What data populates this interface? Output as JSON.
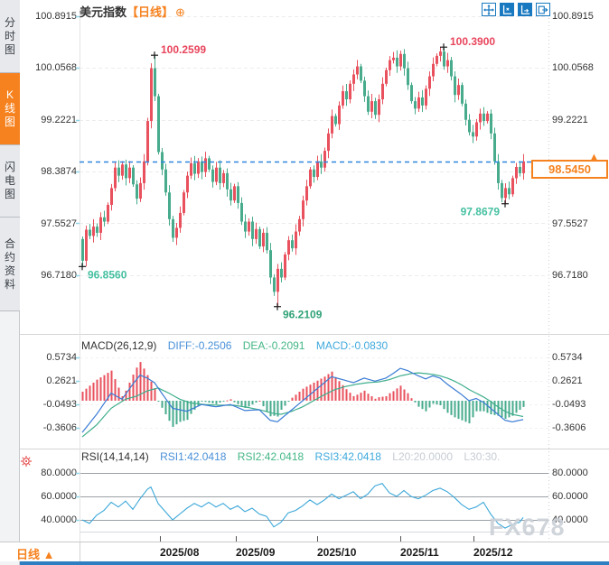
{
  "header": {
    "title": "美元指数",
    "period_tag": "【日线】",
    "add_icon": "⊕"
  },
  "toolbar": {
    "icons": [
      "move",
      "y-axis-scale",
      "x-axis-scale",
      "popout"
    ]
  },
  "sidebar": {
    "items": [
      {
        "label": "分时图",
        "active": false
      },
      {
        "label": "K线图",
        "active": true
      },
      {
        "label": "闪电图",
        "active": false
      },
      {
        "label": "合约资料",
        "active": false
      }
    ]
  },
  "price_axis": {
    "labels": [
      "100.8915",
      "100.0568",
      "99.2221",
      "98.3874",
      "97.5527",
      "96.7180"
    ]
  },
  "price_box": {
    "value": "98.5450",
    "arrow": "▲"
  },
  "macd": {
    "title": "MACD(26,12,9)",
    "diff_label": "DIFF:-0.2506",
    "dea_label": "DEA:-0.2091",
    "macd_label": "MACD:-0.0830",
    "axis": [
      "0.5734",
      "0.2621",
      "-0.0493",
      "-0.3606"
    ]
  },
  "rsi": {
    "title": "RSI(14,14,14)",
    "rsi1_label": "RSI1:42.0418",
    "rsi2_label": "RSI2:42.0418",
    "rsi3_label": "RSI3:42.0418",
    "l20_label": "L20:20.0000",
    "l30_label": "L30:30.",
    "axis": [
      "80.0000",
      "60.0000",
      "40.0000"
    ]
  },
  "bottom": {
    "period_label": "日线",
    "arrow": "▲",
    "x_labels": [
      "2025/08",
      "2025/09",
      "2025/10",
      "2025/11",
      "2025/12"
    ]
  },
  "watermark": "FX678",
  "colors": {
    "up": "#e8515d",
    "down": "#47ab8c",
    "diff": "#3a7bd5",
    "dea": "#3fae8c",
    "rsi_line": "#3ba7d9",
    "accent": "#f6821f",
    "tool_blue": "#1879c0",
    "last_price_line": "#2e86de",
    "ann_red": "#e8455c",
    "ann_teal": "#45c0a1",
    "ann_green": "#2fa277",
    "grid": "#ececec",
    "rsi_grid": "#9aa0a6",
    "cyan_tick": "#8fd6e8"
  },
  "chart_data": {
    "type": "candlestick",
    "title": "美元指数 日线",
    "x_range": [
      "2025/07",
      "2025/12"
    ],
    "price_ylim": [
      96.718,
      100.8915
    ],
    "open_first": 97.3,
    "closes": [
      96.95,
      97.45,
      97.35,
      97.5,
      97.4,
      97.65,
      97.58,
      97.85,
      98.12,
      98.45,
      98.32,
      98.5,
      98.28,
      98.45,
      98.18,
      97.95,
      98.2,
      98.55,
      99.2,
      100.05,
      99.6,
      98.7,
      98.42,
      98.05,
      97.62,
      97.32,
      97.48,
      97.72,
      98.05,
      98.32,
      98.52,
      98.35,
      98.55,
      98.38,
      98.6,
      98.42,
      98.22,
      98.45,
      98.2,
      98.36,
      98.1,
      97.92,
      98.15,
      97.88,
      97.58,
      97.42,
      97.58,
      97.3,
      97.46,
      97.18,
      97.4,
      97.12,
      96.68,
      96.45,
      96.82,
      96.68,
      97.05,
      97.28,
      97.15,
      97.42,
      97.62,
      97.92,
      98.15,
      98.42,
      98.3,
      98.55,
      98.45,
      98.72,
      99.0,
      99.28,
      99.15,
      99.45,
      99.68,
      99.55,
      99.8,
      99.95,
      100.08,
      99.85,
      99.6,
      99.35,
      99.52,
      99.3,
      99.55,
      99.8,
      100.02,
      100.18,
      100.22,
      100.08,
      100.28,
      100.05,
      99.78,
      99.52,
      99.4,
      99.58,
      99.45,
      99.72,
      99.92,
      100.12,
      100.25,
      100.32,
      100.08,
      100.18,
      99.92,
      99.62,
      99.78,
      99.48,
      99.22,
      99.02,
      98.95,
      99.18,
      99.32,
      99.2,
      99.32,
      99.0,
      98.55,
      98.2,
      97.96,
      98.12,
      98.02,
      98.28,
      98.46,
      98.36,
      98.55
    ],
    "markers": [
      {
        "i": 0,
        "price": 96.856,
        "label": "96.8560",
        "kind": "low",
        "side": "br",
        "color": "#45c0a1"
      },
      {
        "i": 20,
        "price": 100.2599,
        "label": "100.2599",
        "kind": "high",
        "side": "ar",
        "color": "#e8455c"
      },
      {
        "i": 54,
        "price": 96.2109,
        "label": "96.2109",
        "kind": "low",
        "side": "br",
        "color": "#2fa277"
      },
      {
        "i": 100,
        "price": 100.39,
        "label": "100.3900",
        "kind": "high",
        "side": "ar",
        "color": "#e8455c"
      },
      {
        "i": 117,
        "price": 97.8679,
        "label": "97.8679",
        "kind": "low",
        "side": "bl",
        "color": "#45c0a1"
      }
    ],
    "last_price": 98.545,
    "macd": {
      "diff_last": -0.2506,
      "dea_last": -0.2091,
      "hist_last": -0.083,
      "axis_values": [
        0.5734,
        0.2621,
        -0.0493,
        -0.3606
      ],
      "diff_anchors": [
        [
          0,
          -0.42
        ],
        [
          4,
          -0.18
        ],
        [
          8,
          0.1
        ],
        [
          11,
          0.02
        ],
        [
          14,
          0.22
        ],
        [
          16,
          0.34
        ],
        [
          18,
          0.3
        ],
        [
          20,
          0.24
        ],
        [
          22,
          0.1
        ],
        [
          25,
          -0.1
        ],
        [
          29,
          -0.14
        ],
        [
          33,
          -0.05
        ],
        [
          37,
          -0.08
        ],
        [
          41,
          -0.05
        ],
        [
          45,
          -0.13
        ],
        [
          49,
          -0.12
        ],
        [
          52,
          -0.26
        ],
        [
          54,
          -0.28
        ],
        [
          56,
          -0.2
        ],
        [
          58,
          -0.12
        ],
        [
          60,
          -0.04
        ],
        [
          63,
          0.08
        ],
        [
          66,
          0.2
        ],
        [
          69,
          0.32
        ],
        [
          72,
          0.28
        ],
        [
          75,
          0.24
        ],
        [
          78,
          0.3
        ],
        [
          81,
          0.26
        ],
        [
          84,
          0.3
        ],
        [
          86,
          0.36
        ],
        [
          88,
          0.43
        ],
        [
          90,
          0.4
        ],
        [
          93,
          0.33
        ],
        [
          95,
          0.29
        ],
        [
          97,
          0.33
        ],
        [
          99,
          0.3
        ],
        [
          101,
          0.22
        ],
        [
          103,
          0.15
        ],
        [
          105,
          0.08
        ],
        [
          107,
          0.0
        ],
        [
          109,
          0.03
        ],
        [
          111,
          -0.02
        ],
        [
          113,
          -0.1
        ],
        [
          115,
          -0.18
        ],
        [
          117,
          -0.26
        ],
        [
          119,
          -0.28
        ],
        [
          121,
          -0.26
        ],
        [
          122,
          -0.2506
        ]
      ],
      "dea_anchors": [
        [
          0,
          -0.48
        ],
        [
          4,
          -0.32
        ],
        [
          8,
          -0.1
        ],
        [
          12,
          0.02
        ],
        [
          15,
          0.06
        ],
        [
          18,
          0.13
        ],
        [
          21,
          0.17
        ],
        [
          24,
          0.1
        ],
        [
          27,
          0.02
        ],
        [
          30,
          -0.03
        ],
        [
          34,
          -0.05
        ],
        [
          38,
          -0.06
        ],
        [
          42,
          -0.06
        ],
        [
          46,
          -0.09
        ],
        [
          50,
          -0.13
        ],
        [
          53,
          -0.17
        ],
        [
          55,
          -0.18
        ],
        [
          58,
          -0.14
        ],
        [
          61,
          -0.08
        ],
        [
          64,
          0.0
        ],
        [
          67,
          0.08
        ],
        [
          70,
          0.15
        ],
        [
          73,
          0.19
        ],
        [
          76,
          0.22
        ],
        [
          79,
          0.24
        ],
        [
          82,
          0.25
        ],
        [
          85,
          0.28
        ],
        [
          88,
          0.33
        ],
        [
          91,
          0.36
        ],
        [
          93,
          0.37
        ],
        [
          95,
          0.36
        ],
        [
          97,
          0.35
        ],
        [
          99,
          0.33
        ],
        [
          101,
          0.3
        ],
        [
          103,
          0.26
        ],
        [
          105,
          0.21
        ],
        [
          107,
          0.15
        ],
        [
          109,
          0.1
        ],
        [
          111,
          0.05
        ],
        [
          113,
          -0.01
        ],
        [
          115,
          -0.08
        ],
        [
          117,
          -0.14
        ],
        [
          119,
          -0.18
        ],
        [
          121,
          -0.2
        ],
        [
          122,
          -0.2091
        ]
      ]
    },
    "rsi": {
      "last": 42.0418,
      "levels": [
        80,
        60,
        40,
        30,
        20
      ],
      "anchors": [
        [
          0,
          40
        ],
        [
          2,
          37
        ],
        [
          4,
          44
        ],
        [
          6,
          48
        ],
        [
          8,
          55
        ],
        [
          10,
          51
        ],
        [
          12,
          56
        ],
        [
          14,
          49
        ],
        [
          16,
          58
        ],
        [
          18,
          66
        ],
        [
          19,
          68
        ],
        [
          21,
          54
        ],
        [
          23,
          47
        ],
        [
          25,
          40
        ],
        [
          27,
          45
        ],
        [
          29,
          50
        ],
        [
          31,
          54
        ],
        [
          33,
          51
        ],
        [
          35,
          55
        ],
        [
          37,
          51
        ],
        [
          39,
          54
        ],
        [
          41,
          49
        ],
        [
          43,
          52
        ],
        [
          45,
          47
        ],
        [
          47,
          50
        ],
        [
          49,
          45
        ],
        [
          51,
          43
        ],
        [
          53,
          34
        ],
        [
          55,
          38
        ],
        [
          57,
          46
        ],
        [
          59,
          48
        ],
        [
          61,
          52
        ],
        [
          63,
          57
        ],
        [
          65,
          53
        ],
        [
          67,
          57
        ],
        [
          69,
          62
        ],
        [
          71,
          58
        ],
        [
          73,
          61
        ],
        [
          75,
          64
        ],
        [
          77,
          58
        ],
        [
          79,
          62
        ],
        [
          81,
          69
        ],
        [
          83,
          71
        ],
        [
          85,
          63
        ],
        [
          87,
          60
        ],
        [
          89,
          65
        ],
        [
          91,
          60
        ],
        [
          93,
          58
        ],
        [
          95,
          61
        ],
        [
          97,
          65
        ],
        [
          99,
          67
        ],
        [
          101,
          64
        ],
        [
          103,
          59
        ],
        [
          105,
          53
        ],
        [
          107,
          49
        ],
        [
          109,
          51
        ],
        [
          111,
          55
        ],
        [
          113,
          45
        ],
        [
          115,
          37
        ],
        [
          117,
          33
        ],
        [
          119,
          36
        ],
        [
          121,
          38
        ],
        [
          122,
          42.0418
        ]
      ],
      "x_ticks_i": [
        21.5,
        42.5,
        65,
        88,
        108.25
      ]
    }
  }
}
